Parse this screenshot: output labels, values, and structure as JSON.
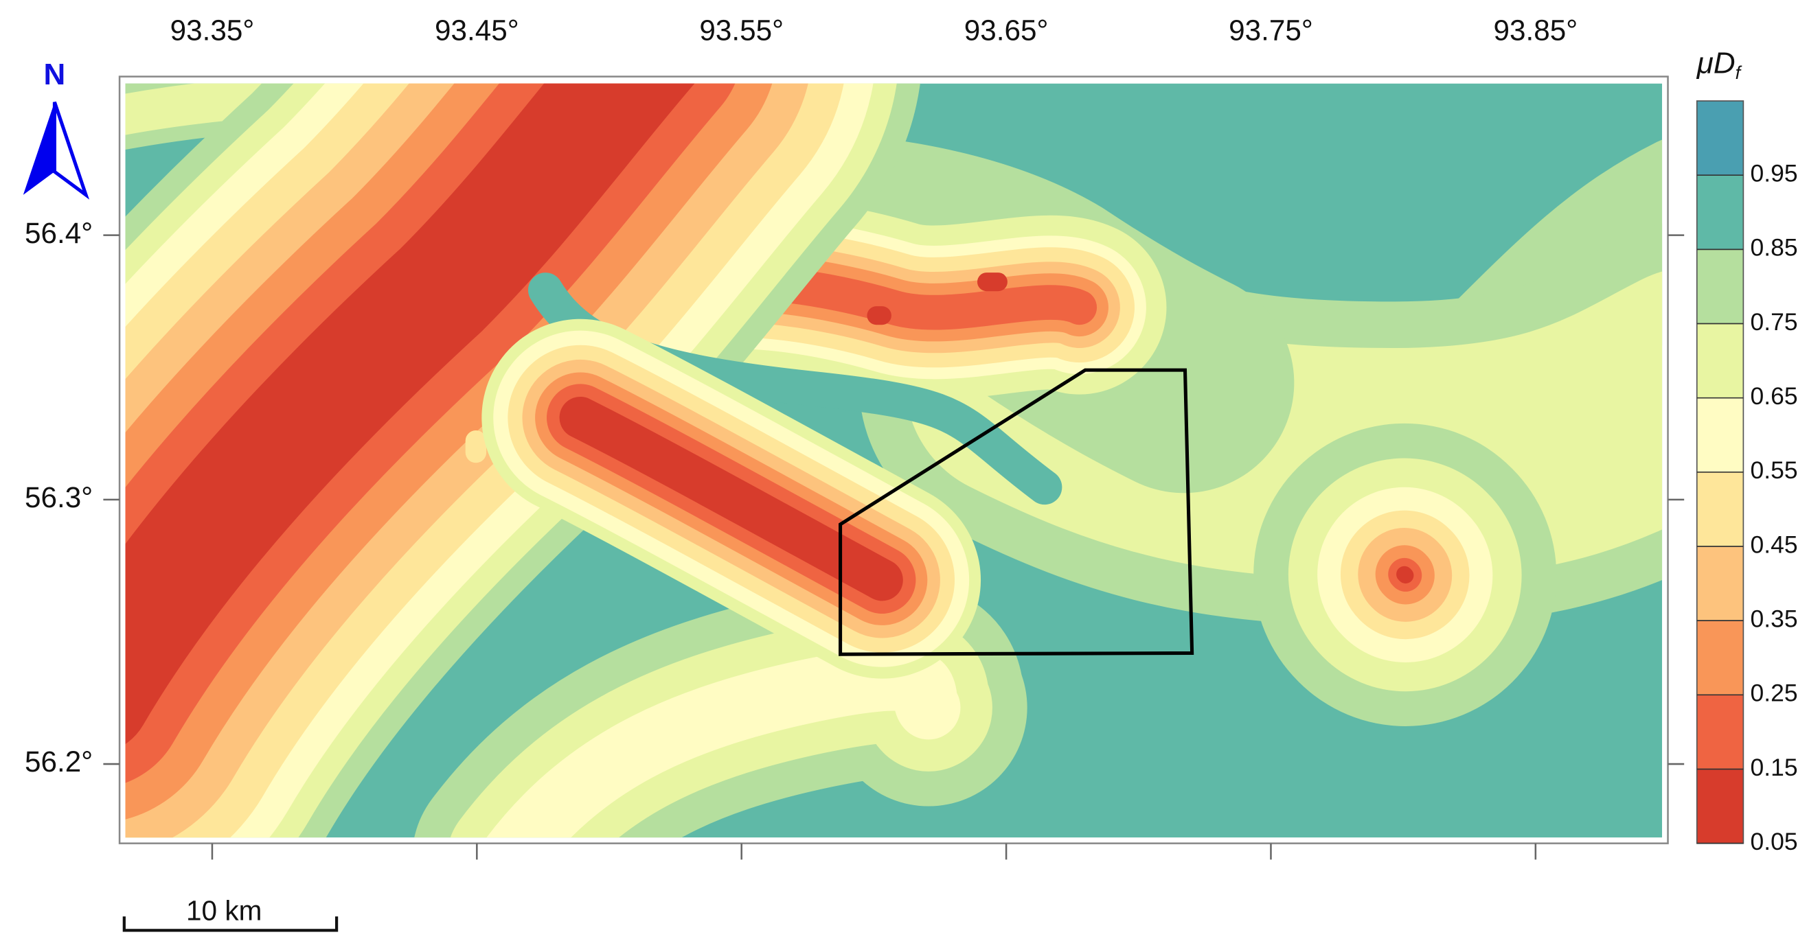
{
  "chart_data": {
    "type": "contour-map",
    "colorbar_label": {
      "text": "μD",
      "subscript": "f"
    },
    "xlim": [
      93.315,
      93.9
    ],
    "xticks": [
      {
        "value": 93.35,
        "label": "93.35°"
      },
      {
        "value": 93.45,
        "label": "93.45°"
      },
      {
        "value": 93.55,
        "label": "93.55°"
      },
      {
        "value": 93.65,
        "label": "93.65°"
      },
      {
        "value": 93.75,
        "label": "93.75°"
      },
      {
        "value": 93.85,
        "label": "93.85°"
      }
    ],
    "ylim": [
      56.17,
      56.46
    ],
    "yticks": [
      {
        "value": 56.2,
        "label": "56.2°"
      },
      {
        "value": 56.3,
        "label": "56.3°"
      },
      {
        "value": 56.4,
        "label": "56.4°"
      }
    ],
    "clim": [
      0.05,
      1.05
    ],
    "cticks": [
      0.05,
      0.15,
      0.25,
      0.35,
      0.45,
      0.55,
      0.65,
      0.75,
      0.85,
      0.95
    ],
    "colors": [
      "#d73c2c",
      "#ef6442",
      "#f99658",
      "#fdc37d",
      "#fee69a",
      "#fffcc3",
      "#e8f5a2",
      "#b5df9e",
      "#5fb9a7",
      "#4a9fb1"
    ],
    "north_label": "N",
    "scale_bar_label": "10 km"
  }
}
